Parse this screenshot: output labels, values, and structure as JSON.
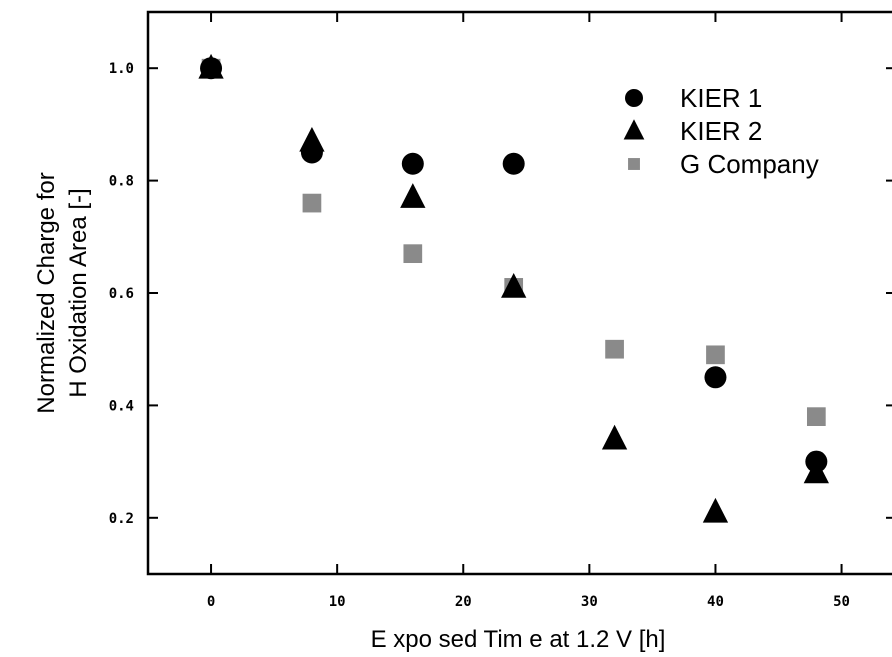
{
  "chart_data": {
    "type": "scatter",
    "xlabel": "E xpo sed Tim e at 1.2 V [h]",
    "ylabel_lines": [
      "Normalized Charge for",
      "H Oxidation Area [-]"
    ],
    "xlim": [
      -5,
      54
    ],
    "ylim": [
      0.1,
      1.1
    ],
    "xticks": [
      0,
      10,
      20,
      30,
      40,
      50
    ],
    "xtick_labels": [
      "0",
      "10",
      "20",
      "30",
      "40",
      "50"
    ],
    "yticks": [
      0.2,
      0.4,
      0.6,
      0.8,
      1.0
    ],
    "ytick_labels": [
      "0.2",
      "0.4",
      "0.6",
      "0.8",
      "1.0"
    ],
    "grid": false,
    "legend_position": "top-right",
    "series": [
      {
        "name": "KIER 1",
        "marker": "circle",
        "color": "#000000",
        "points": [
          [
            0,
            1.0
          ],
          [
            8,
            0.85
          ],
          [
            16,
            0.83
          ],
          [
            24,
            0.83
          ],
          [
            40,
            0.45
          ],
          [
            48,
            0.3
          ]
        ]
      },
      {
        "name": "KIER 2",
        "marker": "triangle",
        "color": "#000000",
        "points": [
          [
            0,
            1.0
          ],
          [
            8,
            0.87
          ],
          [
            16,
            0.77
          ],
          [
            24,
            0.61
          ],
          [
            32,
            0.34
          ],
          [
            40,
            0.21
          ],
          [
            48,
            0.28
          ]
        ]
      },
      {
        "name": "G Company",
        "marker": "square",
        "color": "#8a8a8a",
        "points": [
          [
            0,
            1.0
          ],
          [
            8,
            0.76
          ],
          [
            16,
            0.67
          ],
          [
            24,
            0.61
          ],
          [
            32,
            0.5
          ],
          [
            40,
            0.49
          ],
          [
            48,
            0.38
          ]
        ]
      }
    ]
  }
}
